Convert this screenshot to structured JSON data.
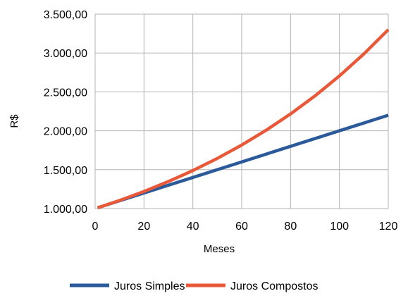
{
  "chart_data": {
    "type": "line",
    "title": "",
    "xlabel": "Meses",
    "ylabel": "R$",
    "xlim": [
      0,
      120
    ],
    "ylim": [
      1000,
      3500
    ],
    "x_ticks": [
      0,
      20,
      40,
      60,
      80,
      100,
      120
    ],
    "x_tick_labels": [
      "0",
      "20",
      "40",
      "60",
      "80",
      "100",
      "120"
    ],
    "y_ticks": [
      1000,
      1500,
      2000,
      2500,
      3000,
      3500
    ],
    "y_tick_labels": [
      "1.000,00",
      "1.500,00",
      "2.000,00",
      "2.500,00",
      "3.000,00",
      "3.500,00"
    ],
    "grid": true,
    "legend_position": "bottom",
    "series": [
      {
        "name": "Juros Simples",
        "color": "#2a5a9a",
        "x": [
          1,
          120
        ],
        "y": [
          1010,
          2200
        ]
      },
      {
        "name": "Juros Compostos",
        "color": "#e8593a",
        "x": [
          1,
          10,
          20,
          30,
          40,
          50,
          60,
          70,
          80,
          90,
          100,
          110,
          120
        ],
        "y": [
          1010,
          1104.62,
          1220.19,
          1347.85,
          1488.86,
          1644.63,
          1816.7,
          2006.76,
          2216.72,
          2448.63,
          2704.81,
          2987.8,
          3300.39
        ]
      }
    ]
  }
}
